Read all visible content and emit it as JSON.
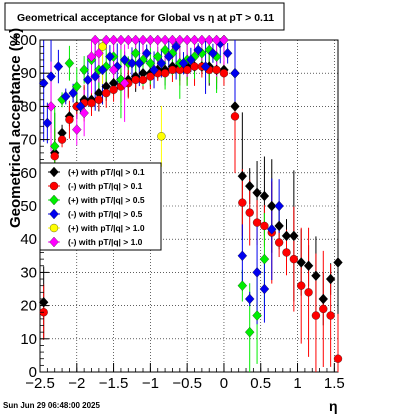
{
  "chart_data": {
    "type": "scatter",
    "title": "Geometrical acceptance for Global vs   η  at pT > 0.11",
    "xlabel": "η",
    "ylabel": "Geometrical acceptance (%)",
    "xlim": [
      -2.5,
      1.55
    ],
    "ylim": [
      0,
      100
    ],
    "xticks": [
      -2.5,
      -2,
      -1.5,
      -1,
      -0.5,
      0,
      0.5,
      1,
      1.5
    ],
    "xtick_labels": [
      "−2.5",
      "−2",
      "−1.5",
      "−1",
      "−0.5",
      "0",
      "0.5",
      "1",
      "1.5"
    ],
    "yticks": [
      0,
      10,
      20,
      30,
      40,
      50,
      60,
      70,
      80,
      90,
      100
    ],
    "ytick_labels": [
      "0",
      "10",
      "20",
      "30",
      "40",
      "50",
      "60",
      "70",
      "80",
      "90",
      "100"
    ],
    "grid": true,
    "legend_position": "left-middle",
    "timestamp": "Sun Jun 29 06:48:00 2025",
    "series": [
      {
        "name": "(+) with pT/|q| > 0.1",
        "color": "#000000",
        "marker": "diamond",
        "points": [
          [
            -2.45,
            21
          ],
          [
            -2.3,
            66
          ],
          [
            -2.2,
            72
          ],
          [
            -2.1,
            77
          ],
          [
            -2.0,
            80
          ],
          [
            -1.9,
            82
          ],
          [
            -1.8,
            82
          ],
          [
            -1.7,
            84
          ],
          [
            -1.6,
            86
          ],
          [
            -1.5,
            87
          ],
          [
            -1.4,
            88
          ],
          [
            -1.3,
            88
          ],
          [
            -1.2,
            89
          ],
          [
            -1.1,
            90
          ],
          [
            -1.0,
            90
          ],
          [
            -0.9,
            91
          ],
          [
            -0.8,
            91
          ],
          [
            -0.7,
            92
          ],
          [
            -0.6,
            92
          ],
          [
            -0.5,
            92
          ],
          [
            -0.4,
            92
          ],
          [
            -0.3,
            92
          ],
          [
            -0.2,
            92
          ],
          [
            -0.1,
            91
          ],
          [
            0.0,
            91
          ],
          [
            0.15,
            80
          ],
          [
            0.25,
            59
          ],
          [
            0.35,
            56
          ],
          [
            0.45,
            54
          ],
          [
            0.55,
            53
          ],
          [
            0.65,
            50
          ],
          [
            0.75,
            44
          ],
          [
            0.85,
            41
          ],
          [
            0.95,
            41
          ],
          [
            1.05,
            33
          ],
          [
            1.15,
            32
          ],
          [
            1.25,
            29
          ],
          [
            1.35,
            22
          ],
          [
            1.45,
            28
          ],
          [
            1.55,
            33
          ]
        ]
      },
      {
        "name": "(-) with pT/|q| > 0.1",
        "color": "#ff0000",
        "marker": "circle",
        "points": [
          [
            -2.45,
            18
          ],
          [
            -2.3,
            65
          ],
          [
            -2.2,
            70
          ],
          [
            -2.1,
            76
          ],
          [
            -2.0,
            80
          ],
          [
            -1.9,
            81
          ],
          [
            -1.8,
            81
          ],
          [
            -1.7,
            82
          ],
          [
            -1.6,
            84
          ],
          [
            -1.5,
            85
          ],
          [
            -1.4,
            86
          ],
          [
            -1.3,
            87
          ],
          [
            -1.2,
            88
          ],
          [
            -1.1,
            88
          ],
          [
            -1.0,
            89
          ],
          [
            -0.9,
            90
          ],
          [
            -0.8,
            90
          ],
          [
            -0.7,
            91
          ],
          [
            -0.6,
            91
          ],
          [
            -0.5,
            91
          ],
          [
            -0.4,
            92
          ],
          [
            -0.3,
            92
          ],
          [
            -0.2,
            91
          ],
          [
            -0.1,
            91
          ],
          [
            0.0,
            90
          ],
          [
            0.15,
            77
          ],
          [
            0.25,
            51
          ],
          [
            0.35,
            48
          ],
          [
            0.45,
            45
          ],
          [
            0.55,
            44
          ],
          [
            0.65,
            42
          ],
          [
            0.75,
            39
          ],
          [
            0.85,
            36
          ],
          [
            0.95,
            34
          ],
          [
            1.05,
            26
          ],
          [
            1.15,
            24
          ],
          [
            1.25,
            17
          ],
          [
            1.35,
            19
          ],
          [
            1.45,
            17
          ],
          [
            1.55,
            4
          ]
        ]
      },
      {
        "name": "(+) with pT/|q| > 0.5",
        "color": "#00ee00",
        "marker": "diamond",
        "points": [
          [
            -2.3,
            68
          ],
          [
            -2.2,
            82
          ],
          [
            -2.1,
            93
          ],
          [
            -2.0,
            86
          ],
          [
            -1.9,
            91
          ],
          [
            -1.8,
            94
          ],
          [
            -1.7,
            91
          ],
          [
            -1.6,
            92
          ],
          [
            -1.5,
            95
          ],
          [
            -1.4,
            88
          ],
          [
            -1.3,
            93
          ],
          [
            -1.2,
            96
          ],
          [
            -1.1,
            94
          ],
          [
            -1.0,
            93
          ],
          [
            -0.9,
            95
          ],
          [
            -0.8,
            97
          ],
          [
            -0.7,
            96
          ],
          [
            -0.6,
            93
          ],
          [
            -0.5,
            94
          ],
          [
            -0.4,
            95
          ],
          [
            -0.3,
            96
          ],
          [
            -0.2,
            97
          ],
          [
            -0.1,
            95
          ],
          [
            0.0,
            100
          ],
          [
            0.15,
            90
          ],
          [
            0.25,
            26
          ],
          [
            0.35,
            12
          ],
          [
            0.45,
            17
          ],
          [
            0.55,
            34
          ]
        ]
      },
      {
        "name": "(-) with pT/|q| > 0.5",
        "color": "#0000ee",
        "marker": "diamond",
        "points": [
          [
            -2.45,
            87
          ],
          [
            -2.4,
            75
          ],
          [
            -2.35,
            89
          ],
          [
            -2.25,
            92
          ],
          [
            -2.15,
            83
          ],
          [
            -2.05,
            84
          ],
          [
            -1.95,
            80
          ],
          [
            -1.85,
            88
          ],
          [
            -1.75,
            89
          ],
          [
            -1.65,
            91
          ],
          [
            -1.55,
            95
          ],
          [
            -1.45,
            92
          ],
          [
            -1.35,
            94
          ],
          [
            -1.25,
            93
          ],
          [
            -1.15,
            93
          ],
          [
            -1.05,
            96
          ],
          [
            -0.95,
            91
          ],
          [
            -0.85,
            93
          ],
          [
            -0.75,
            95
          ],
          [
            -0.65,
            98
          ],
          [
            -0.55,
            93
          ],
          [
            -0.45,
            94
          ],
          [
            -0.35,
            97
          ],
          [
            -0.25,
            92
          ],
          [
            -0.15,
            96
          ],
          [
            -0.05,
            99
          ],
          [
            0.05,
            96
          ],
          [
            0.15,
            90
          ],
          [
            0.25,
            35
          ],
          [
            0.35,
            22
          ],
          [
            0.45,
            30
          ],
          [
            0.55,
            25
          ],
          [
            0.65,
            43
          ],
          [
            0.75,
            50
          ]
        ]
      },
      {
        "name": "(+) with pT/|q| > 1.0",
        "color": "#ffff00",
        "marker": "circle",
        "points": [
          [
            -1.65,
            98
          ],
          [
            -0.85,
            71
          ]
        ]
      },
      {
        "name": "(-) with pT/|q| > 1.0",
        "color": "#ff00ff",
        "marker": "diamond",
        "points": [
          [
            -2.35,
            80
          ],
          [
            -2.0,
            73
          ],
          [
            -1.75,
            100
          ],
          [
            -1.6,
            100
          ],
          [
            -1.5,
            100
          ],
          [
            -1.4,
            100
          ],
          [
            -1.3,
            100
          ],
          [
            -1.2,
            100
          ],
          [
            -1.1,
            100
          ],
          [
            -1.0,
            100
          ],
          [
            -0.9,
            100
          ],
          [
            -0.8,
            100
          ],
          [
            -0.7,
            100
          ],
          [
            -0.6,
            100
          ],
          [
            -0.5,
            100
          ],
          [
            -0.4,
            100
          ],
          [
            -0.3,
            100
          ],
          [
            -0.2,
            100
          ],
          [
            -0.1,
            100
          ],
          [
            0.0,
            100
          ],
          [
            -1.9,
            78
          ],
          [
            -1.8,
            95
          ],
          [
            -1.7,
            96
          ],
          [
            -1.5,
            91
          ],
          [
            -1.35,
            87
          ]
        ]
      }
    ]
  }
}
